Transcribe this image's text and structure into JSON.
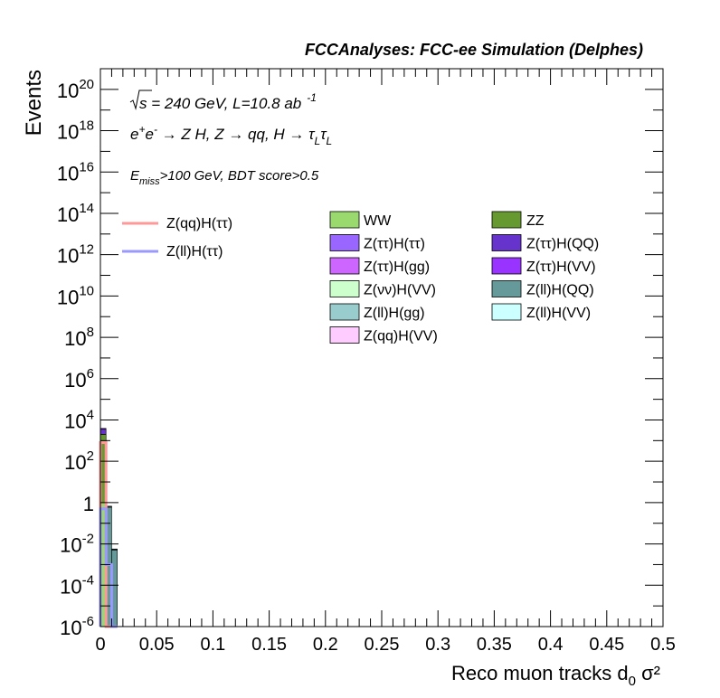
{
  "header": {
    "title": "FCCAnalyses: FCC-ee Simulation (Delphes)"
  },
  "annotations": {
    "energy_prefix": "s",
    "energy_rest": " = 240 GeV, L=10.8 ab",
    "lumi_exp": "-1",
    "process": "e⁺e⁻ → Z H, Z → qq, H → τLτL",
    "cut_main": "E",
    "cut_sub": "miss",
    "cut_rest": ">100 GeV, BDT score>0.5"
  },
  "chart_data": {
    "type": "bar",
    "stacked": true,
    "title": "",
    "xlabel": "Reco muon tracks d",
    "xlabel_sub": "0",
    "xlabel_tail": " σ²",
    "ylabel": "Events",
    "xlim": [
      0,
      0.5
    ],
    "ylim": [
      1e-06,
      1e+21
    ],
    "log_y": true,
    "bin_width": 0.005,
    "x_ticks": [
      "0",
      "0.05",
      "0.1",
      "0.15",
      "0.2",
      "0.25",
      "0.3",
      "0.35",
      "0.4",
      "0.45",
      "0.5"
    ],
    "y_ticks": [
      {
        "base": "10",
        "exp": "20",
        "value": 1e+20
      },
      {
        "base": "10",
        "exp": "18",
        "value": 1e+18
      },
      {
        "base": "10",
        "exp": "16",
        "value": 1e+16
      },
      {
        "base": "10",
        "exp": "14",
        "value": 100000000000000.0
      },
      {
        "base": "10",
        "exp": "12",
        "value": 1000000000000.0
      },
      {
        "base": "10",
        "exp": "10",
        "value": 10000000000.0
      },
      {
        "base": "10",
        "exp": "8",
        "value": 100000000.0
      },
      {
        "base": "10",
        "exp": "6",
        "value": 1000000.0
      },
      {
        "base": "10",
        "exp": "4",
        "value": 10000.0
      },
      {
        "base": "10",
        "exp": "2",
        "value": 100.0
      },
      {
        "base": "1",
        "exp": "",
        "value": 1
      },
      {
        "base": "10",
        "exp": "-2",
        "value": 0.01
      },
      {
        "base": "10",
        "exp": "-4",
        "value": 0.0001
      },
      {
        "base": "10",
        "exp": "-6",
        "value": 1e-06
      }
    ],
    "legend_position": "top",
    "background_series": [
      {
        "name": "WW",
        "color": "#99d96e",
        "values": [
          1,
          0,
          0
        ]
      },
      {
        "name": "ZZ",
        "color": "#66992f",
        "values": [
          2000,
          0,
          0
        ]
      },
      {
        "name": "Z(ττ)H(ττ)",
        "color": "#9966ff",
        "values": [
          30,
          0,
          0
        ]
      },
      {
        "name": "Z(ττ)H(QQ)",
        "color": "#6633cc",
        "values": [
          1500,
          0,
          0
        ]
      },
      {
        "name": "Z(ττ)H(gg)",
        "color": "#cc66ff",
        "values": [
          60,
          0,
          0
        ]
      },
      {
        "name": "Z(ττ)H(VV)",
        "color": "#9933ff",
        "values": [
          300,
          0,
          0
        ]
      },
      {
        "name": "Z(νν)H(VV)",
        "color": "#ccffcc",
        "values": [
          2,
          0,
          0
        ]
      },
      {
        "name": "Z(ll)H(QQ)",
        "color": "#669999",
        "values": [
          10,
          0.6,
          0.005
        ]
      },
      {
        "name": "Z(ll)H(gg)",
        "color": "#99cccc",
        "values": [
          1,
          0.05,
          0.0005
        ]
      },
      {
        "name": "Z(ll)H(VV)",
        "color": "#ccffff",
        "values": [
          0.5,
          0.02,
          0.0002
        ]
      },
      {
        "name": "Z(qq)H(VV)",
        "color": "#ffccff",
        "values": [
          5,
          0,
          0
        ]
      }
    ],
    "signal_series": [
      {
        "name": "Z(qq)H(ττ)",
        "color": "#ff9999",
        "values": [
          800,
          0,
          0
        ]
      },
      {
        "name": "Z(ll)H(ττ)",
        "color": "#9999ff",
        "values": [
          0.5,
          0.001,
          0
        ]
      }
    ],
    "legend_left": [
      "Z(qq)H(ττ)",
      "Z(ll)H(ττ)"
    ],
    "legend_mid": [
      "WW",
      "Z(ττ)H(ττ)",
      "Z(ττ)H(gg)",
      "Z(νν)H(VV)",
      "Z(ll)H(gg)",
      "Z(qq)H(VV)"
    ],
    "legend_right": [
      "ZZ",
      "Z(ττ)H(QQ)",
      "Z(ττ)H(VV)",
      "Z(ll)H(QQ)",
      "Z(ll)H(VV)"
    ]
  }
}
